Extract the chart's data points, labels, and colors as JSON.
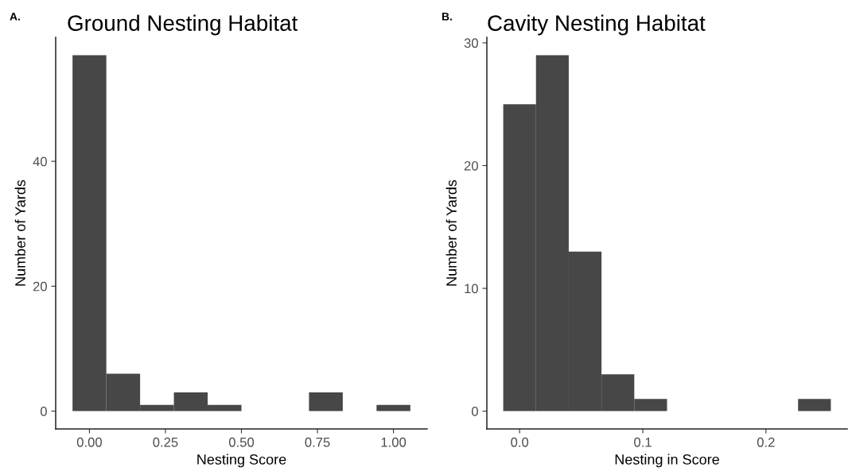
{
  "chart_data": [
    {
      "type": "histogram",
      "title": "Ground Nesting Habitat",
      "xlabel": "Nesting Score",
      "ylabel": "Number of Yards",
      "annotations": [
        "A."
      ],
      "bins": [
        -0.0556,
        0.0556,
        0.1667,
        0.2778,
        0.3889,
        0.5,
        0.6111,
        0.7222,
        0.8333,
        0.9444,
        1.0556
      ],
      "values": [
        57,
        6,
        1,
        3,
        1,
        0,
        0,
        3,
        0,
        1
      ],
      "color": "#474747",
      "xlim": [
        -0.111,
        1.111
      ],
      "xticks": [
        {
          "value": 0,
          "label": "0.00"
        },
        {
          "value": 0.25,
          "label": "0.25"
        },
        {
          "value": 0.5,
          "label": "0.50"
        },
        {
          "value": 0.75,
          "label": "0.75"
        },
        {
          "value": 1,
          "label": "1.00"
        }
      ],
      "ylim": [
        -2.85,
        59.85
      ],
      "yticks": [
        0,
        20,
        40
      ],
      "grid": false
    },
    {
      "type": "histogram",
      "title": "Cavity Nesting Habitat",
      "xlabel": "Nesting in Score",
      "ylabel": "Number of Yards",
      "annotations": [
        "B."
      ],
      "bins": [
        -0.0133,
        0.0133,
        0.0399,
        0.0665,
        0.0931,
        0.1197,
        0.1463,
        0.1729,
        0.1995,
        0.2261,
        0.2527
      ],
      "values": [
        25,
        29,
        13,
        3,
        1,
        0,
        0,
        0,
        0,
        1
      ],
      "color": "#474747",
      "xlim": [
        -0.0266,
        0.266
      ],
      "xticks": [
        {
          "value": 0,
          "label": "0.0"
        },
        {
          "value": 0.1,
          "label": "0.1"
        },
        {
          "value": 0.2,
          "label": "0.2"
        }
      ],
      "ylim": [
        -1.45,
        30.45
      ],
      "yticks": [
        0,
        10,
        20,
        30
      ],
      "grid": false
    }
  ]
}
